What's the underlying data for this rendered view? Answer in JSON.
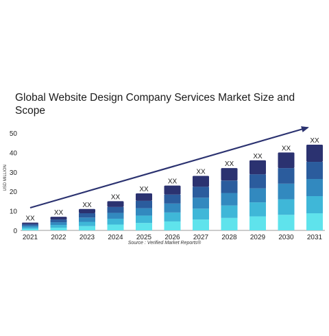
{
  "chart_data": {
    "type": "bar",
    "stacked": true,
    "title": "Global Website Design Company Services Market Size and Scope",
    "ylabel": "USD MILLION",
    "xlabel": "",
    "ylim": [
      0,
      50
    ],
    "yticks": [
      0,
      10,
      20,
      30,
      40,
      50
    ],
    "categories": [
      "2021",
      "2022",
      "2023",
      "2024",
      "2025",
      "2026",
      "2027",
      "2028",
      "2029",
      "2030",
      "2031"
    ],
    "totals": [
      4,
      7,
      11,
      15,
      19,
      23,
      28,
      32,
      36,
      40,
      44
    ],
    "data_labels": [
      "XX",
      "XX",
      "XX",
      "XX",
      "XX",
      "XX",
      "XX",
      "XX",
      "XX",
      "XX",
      "XX"
    ],
    "segments": 5,
    "segment_colors": [
      "#5fe3ec",
      "#3fb7d8",
      "#3289bf",
      "#2b5c9d",
      "#2b3270"
    ],
    "arrow": true,
    "grid": false,
    "source": "Source : Verified Market Reports®"
  }
}
